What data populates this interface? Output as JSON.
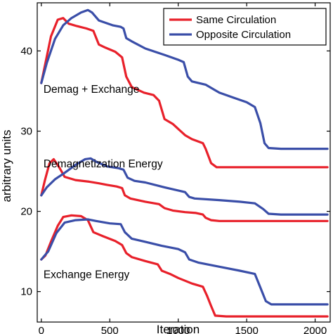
{
  "chart_data": {
    "type": "line",
    "xlabel": "Iteration",
    "ylabel": "arbitrary units",
    "xlim": [
      -30,
      2110
    ],
    "ylim": [
      6.2,
      46
    ],
    "x_ticks": [
      0,
      500,
      1000,
      1500,
      2000
    ],
    "y_ticks": [
      10,
      20,
      30,
      40
    ],
    "grid": false,
    "legend_position": "top-right",
    "colors": {
      "same": "#e8202a",
      "opposite": "#3a4ea8"
    },
    "legend": [
      {
        "label": "Same Circulation",
        "color": "#e8202a"
      },
      {
        "label": "Opposite Circulation",
        "color": "#3a4ea8"
      }
    ],
    "annotations": [
      {
        "text": "Demag + Exchange",
        "x": 0,
        "y": 34.8
      },
      {
        "text": "Demagnetization Energy",
        "x": 0,
        "y": 25.5
      },
      {
        "text": "Exchange Energy",
        "x": 0,
        "y": 11.7
      }
    ],
    "series": [
      {
        "name": "Same Circulation",
        "group": "Demag + Exchange",
        "color": "#e8202a",
        "points": [
          [
            0,
            36
          ],
          [
            30,
            38.5
          ],
          [
            70,
            41.8
          ],
          [
            120,
            43.9
          ],
          [
            160,
            44.1
          ],
          [
            200,
            43.4
          ],
          [
            260,
            43.1
          ],
          [
            330,
            42.8
          ],
          [
            380,
            42.5
          ],
          [
            420,
            40.8
          ],
          [
            470,
            40.4
          ],
          [
            540,
            39.9
          ],
          [
            590,
            39.2
          ],
          [
            620,
            36.8
          ],
          [
            660,
            35.5
          ],
          [
            750,
            34.8
          ],
          [
            820,
            34.5
          ],
          [
            860,
            33.8
          ],
          [
            900,
            31.5
          ],
          [
            960,
            30.9
          ],
          [
            1050,
            29.5
          ],
          [
            1100,
            29.0
          ],
          [
            1180,
            28.5
          ],
          [
            1200,
            27.8
          ],
          [
            1240,
            26.0
          ],
          [
            1280,
            25.5
          ],
          [
            1400,
            25.5
          ],
          [
            2090,
            25.5
          ]
        ]
      },
      {
        "name": "Opposite Circulation",
        "group": "Demag + Exchange",
        "color": "#3a4ea8",
        "points": [
          [
            0,
            36
          ],
          [
            40,
            38.5
          ],
          [
            100,
            41.5
          ],
          [
            160,
            43.2
          ],
          [
            220,
            44.1
          ],
          [
            290,
            44.8
          ],
          [
            340,
            45.1
          ],
          [
            370,
            44.8
          ],
          [
            420,
            43.8
          ],
          [
            520,
            43.2
          ],
          [
            580,
            43.0
          ],
          [
            600,
            42.8
          ],
          [
            620,
            41.6
          ],
          [
            660,
            41.2
          ],
          [
            760,
            40.3
          ],
          [
            900,
            39.5
          ],
          [
            1000,
            38.9
          ],
          [
            1040,
            38.6
          ],
          [
            1070,
            36.8
          ],
          [
            1100,
            36.2
          ],
          [
            1200,
            35.8
          ],
          [
            1300,
            34.8
          ],
          [
            1400,
            34.2
          ],
          [
            1500,
            33.6
          ],
          [
            1560,
            33.0
          ],
          [
            1600,
            31.0
          ],
          [
            1630,
            28.5
          ],
          [
            1660,
            27.9
          ],
          [
            1750,
            27.8
          ],
          [
            2090,
            27.8
          ]
        ]
      },
      {
        "name": "Same Circulation",
        "group": "Demagnetization Energy",
        "color": "#e8202a",
        "points": [
          [
            0,
            22
          ],
          [
            25,
            23.8
          ],
          [
            60,
            26.0
          ],
          [
            90,
            26.5
          ],
          [
            130,
            25.5
          ],
          [
            170,
            24.3
          ],
          [
            250,
            23.9
          ],
          [
            350,
            23.7
          ],
          [
            420,
            23.5
          ],
          [
            480,
            23.3
          ],
          [
            550,
            23.1
          ],
          [
            590,
            22.9
          ],
          [
            610,
            22.0
          ],
          [
            650,
            21.6
          ],
          [
            760,
            21.2
          ],
          [
            860,
            20.9
          ],
          [
            900,
            20.4
          ],
          [
            960,
            20.1
          ],
          [
            1050,
            19.9
          ],
          [
            1130,
            19.8
          ],
          [
            1180,
            19.6
          ],
          [
            1200,
            19.2
          ],
          [
            1240,
            18.9
          ],
          [
            1300,
            18.8
          ],
          [
            2090,
            18.8
          ]
        ]
      },
      {
        "name": "Opposite Circulation",
        "group": "Demagnetization Energy",
        "color": "#3a4ea8",
        "points": [
          [
            0,
            22
          ],
          [
            40,
            23.0
          ],
          [
            100,
            24.0
          ],
          [
            170,
            24.8
          ],
          [
            250,
            25.8
          ],
          [
            320,
            26.5
          ],
          [
            360,
            26.6
          ],
          [
            400,
            26.2
          ],
          [
            480,
            25.6
          ],
          [
            560,
            25.4
          ],
          [
            600,
            25.2
          ],
          [
            630,
            24.2
          ],
          [
            680,
            23.8
          ],
          [
            760,
            23.6
          ],
          [
            900,
            23.0
          ],
          [
            1000,
            22.6
          ],
          [
            1050,
            22.4
          ],
          [
            1080,
            21.8
          ],
          [
            1120,
            21.6
          ],
          [
            1300,
            21.4
          ],
          [
            1450,
            21.2
          ],
          [
            1560,
            21.0
          ],
          [
            1620,
            20.3
          ],
          [
            1660,
            19.7
          ],
          [
            1750,
            19.6
          ],
          [
            2090,
            19.6
          ]
        ]
      },
      {
        "name": "Same Circulation",
        "group": "Exchange Energy",
        "color": "#e8202a",
        "points": [
          [
            0,
            14
          ],
          [
            30,
            14.5
          ],
          [
            70,
            16.2
          ],
          [
            120,
            18.2
          ],
          [
            160,
            19.3
          ],
          [
            220,
            19.5
          ],
          [
            290,
            19.4
          ],
          [
            340,
            18.9
          ],
          [
            380,
            17.4
          ],
          [
            450,
            16.9
          ],
          [
            540,
            16.3
          ],
          [
            590,
            15.8
          ],
          [
            620,
            14.8
          ],
          [
            660,
            14.3
          ],
          [
            760,
            13.8
          ],
          [
            850,
            13.4
          ],
          [
            880,
            12.6
          ],
          [
            940,
            12.2
          ],
          [
            1000,
            11.7
          ],
          [
            1100,
            11.0
          ],
          [
            1180,
            10.6
          ],
          [
            1210,
            9.5
          ],
          [
            1240,
            8.2
          ],
          [
            1270,
            7.0
          ],
          [
            1350,
            6.9
          ],
          [
            2090,
            6.9
          ]
        ]
      },
      {
        "name": "Opposite Circulation",
        "group": "Exchange Energy",
        "color": "#3a4ea8",
        "points": [
          [
            0,
            14
          ],
          [
            50,
            15.0
          ],
          [
            110,
            17.3
          ],
          [
            170,
            18.6
          ],
          [
            250,
            18.9
          ],
          [
            340,
            19.0
          ],
          [
            400,
            18.8
          ],
          [
            500,
            18.5
          ],
          [
            580,
            18.4
          ],
          [
            610,
            17.4
          ],
          [
            660,
            16.6
          ],
          [
            760,
            16.2
          ],
          [
            880,
            15.7
          ],
          [
            1000,
            15.3
          ],
          [
            1050,
            14.9
          ],
          [
            1080,
            14.0
          ],
          [
            1150,
            13.6
          ],
          [
            1300,
            13.1
          ],
          [
            1450,
            12.6
          ],
          [
            1560,
            12.2
          ],
          [
            1600,
            10.5
          ],
          [
            1640,
            8.8
          ],
          [
            1680,
            8.4
          ],
          [
            2090,
            8.4
          ]
        ]
      }
    ]
  }
}
